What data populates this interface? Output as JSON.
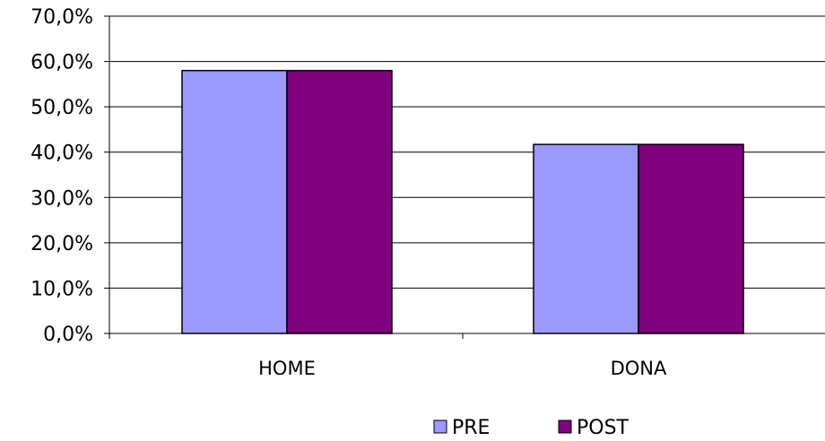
{
  "chart_data": {
    "type": "bar",
    "categories": [
      "HOME",
      "DONA"
    ],
    "series": [
      {
        "name": "PRE",
        "values": [
          58.0,
          41.7
        ],
        "color": "#9999ff"
      },
      {
        "name": "POST",
        "values": [
          58.0,
          41.7
        ],
        "color": "#800080"
      }
    ],
    "ylim": [
      0,
      70
    ],
    "yticks": [
      0,
      10,
      20,
      30,
      40,
      50,
      60,
      70
    ],
    "ytick_labels": [
      "0,0%",
      "10,0%",
      "20,0%",
      "30,0%",
      "40,0%",
      "50,0%",
      "60,0%",
      "70,0%"
    ],
    "grid": true,
    "legend_position": "bottom"
  }
}
